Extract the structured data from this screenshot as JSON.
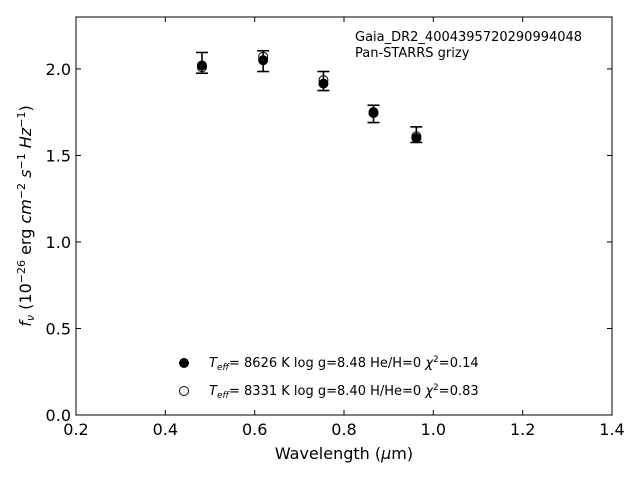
{
  "chart_data": {
    "type": "scatter",
    "xlabel": "Wavelength (μm)",
    "ylabel": "f_ν (10^-26 erg cm^-2 s^-1 Hz^-1)",
    "xlim": [
      0.2,
      1.4
    ],
    "ylim": [
      0.0,
      2.3
    ],
    "x_ticks": [
      "0.2",
      "0.4",
      "0.6",
      "0.8",
      "1.0",
      "1.2",
      "1.4"
    ],
    "y_ticks": [
      "0.0",
      "0.5",
      "1.0",
      "1.5",
      "2.0"
    ],
    "annotation": [
      "Gaia_DR2_4004395720290994048",
      "Pan-STARRS grizy"
    ],
    "observed": {
      "x": [
        0.482,
        0.619,
        0.754,
        0.866,
        0.962
      ],
      "y": [
        2.035,
        2.045,
        1.93,
        1.74,
        1.62
      ],
      "err": [
        0.06,
        0.06,
        0.055,
        0.05,
        0.045
      ]
    },
    "series": [
      {
        "name": "T_eff= 8626 K  log g=8.48  He/H=0  χ²=0.14",
        "marker": "filled",
        "x": [
          0.482,
          0.619,
          0.754,
          0.866,
          0.962
        ],
        "y": [
          2.02,
          2.05,
          1.915,
          1.75,
          1.6
        ]
      },
      {
        "name": "T_eff= 8331 K  log g=8.40  H/He=0  χ²=0.83",
        "marker": "open",
        "x": [
          0.482,
          0.619,
          0.754,
          0.866,
          0.962
        ],
        "y": [
          2.01,
          2.07,
          1.935,
          1.745,
          1.61
        ]
      }
    ],
    "legend": {
      "placement": "bottom-center",
      "entries": [
        {
          "teff": "8626",
          "logg": "8.48",
          "comp_label": "He/H=0",
          "chi2": "0.14"
        },
        {
          "teff": "8331",
          "logg": "8.40",
          "comp_label": "H/He=0",
          "chi2": "0.83"
        }
      ]
    },
    "grid": false
  }
}
